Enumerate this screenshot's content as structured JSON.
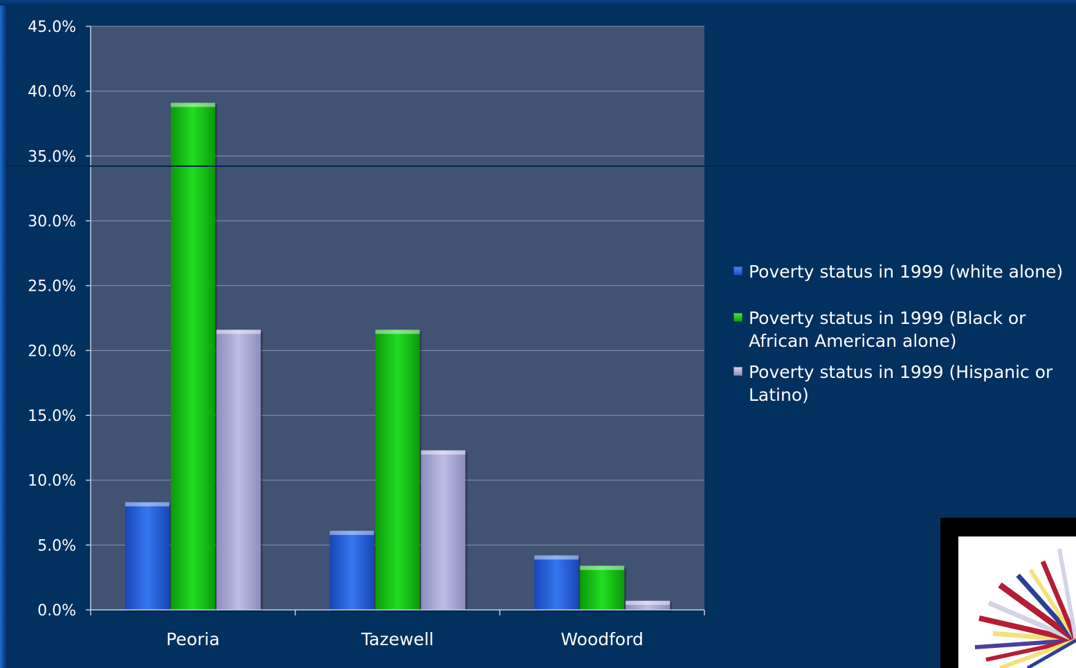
{
  "chart_data": {
    "type": "bar",
    "categories": [
      "Peoria",
      "Tazewell",
      "Woodford"
    ],
    "series": [
      {
        "name": "Poverty status in 1999 (white alone)",
        "values": [
          8.3,
          6.1,
          4.2
        ],
        "color": "#2e6de6"
      },
      {
        "name": "Poverty status in 1999 (Black or African American alone)",
        "values": [
          39.1,
          21.6,
          3.4
        ],
        "color": "#1ad11a"
      },
      {
        "name": "Poverty status in 1999 (Hispanic or Latino)",
        "values": [
          21.6,
          12.3,
          0.7
        ],
        "color": "#b0b0dc"
      }
    ],
    "y_ticks": [
      "0.0%",
      "5.0%",
      "10.0%",
      "15.0%",
      "20.0%",
      "25.0%",
      "30.0%",
      "35.0%",
      "40.0%",
      "45.0%"
    ],
    "ylim": [
      0,
      45
    ],
    "grid": true,
    "legend_position": "right",
    "plot_background": "#415273"
  },
  "legend": {
    "items": [
      "Poverty status in 1999 (white alone)",
      "Poverty status in 1999 (Black or African American alone)",
      "Poverty status in 1999 (Hispanic or Latino)"
    ]
  }
}
